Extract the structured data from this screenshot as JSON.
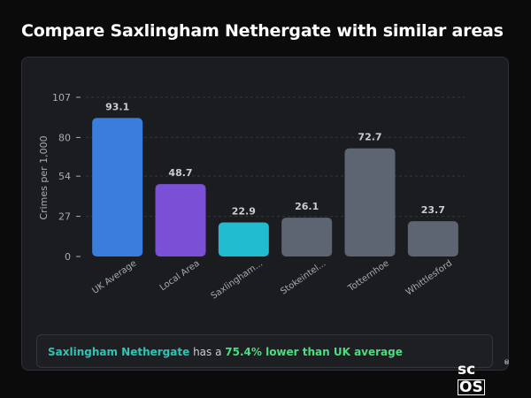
{
  "page": {
    "title": "Compare Saxlingham Nethergate with similar areas"
  },
  "summary": {
    "place": "Saxlingham Nethergate",
    "middle": " has a ",
    "stat": "75.4% lower than UK average"
  },
  "logo": {
    "prefix": "sc",
    "boxed": "OS",
    "reg": "®"
  },
  "colors": {
    "uk": "#3b7ddd",
    "local": "#7b4fd6",
    "focus": "#22bcd1",
    "other": "#5d6472",
    "grid": "#34373d",
    "tick": "#a7abb3",
    "value": "#c9ccd1"
  },
  "chart_data": {
    "type": "bar",
    "ylabel": "Crimes per 1,000",
    "ylim": [
      0,
      107
    ],
    "yticks": [
      0,
      27,
      54,
      80,
      107
    ],
    "grid": true,
    "categories": [
      "UK Average",
      "Local Area",
      "Saxlingham...",
      "Stokeintel...",
      "Totternhoe",
      "Whittlesford"
    ],
    "values": [
      93.1,
      48.7,
      22.9,
      26.1,
      72.7,
      23.7
    ],
    "value_labels": [
      "93.1",
      "48.7",
      "22.9",
      "26.1",
      "72.7",
      "23.7"
    ],
    "colors": [
      "#3b7ddd",
      "#7b4fd6",
      "#22bcd1",
      "#5d6472",
      "#5d6472",
      "#5d6472"
    ]
  }
}
